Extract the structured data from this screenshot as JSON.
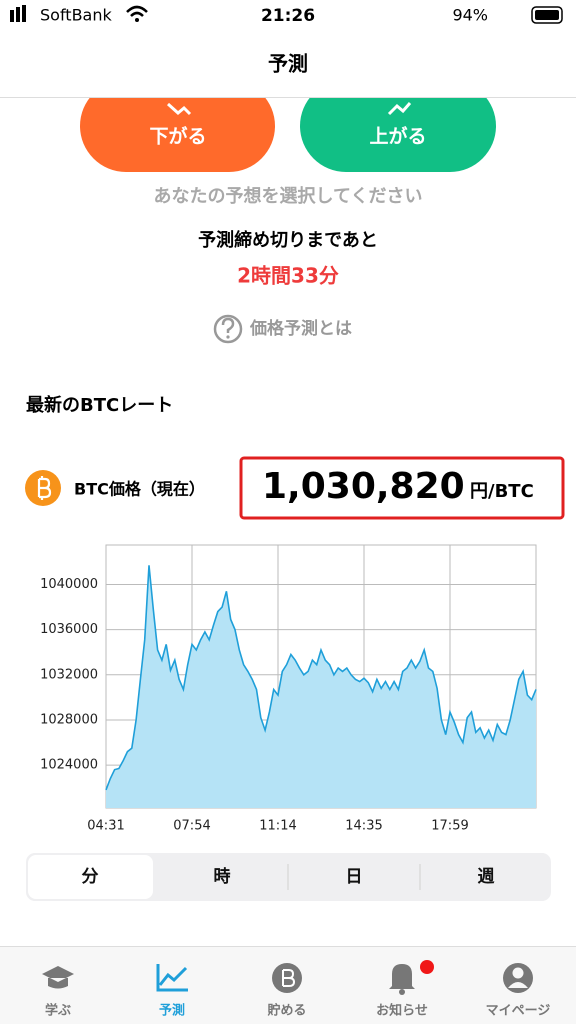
{
  "status_bar": {
    "carrier": "SoftBank",
    "time": "21:26",
    "battery": "94%"
  },
  "header": {
    "title": "予測"
  },
  "buttons": [
    {
      "label": "下がる"
    },
    {
      "label": "上がる"
    }
  ],
  "prompt": "あなたの予想を選択してください",
  "deadline": {
    "label": "予測締め切りまであと",
    "remaining": "2時間33分"
  },
  "help_link": "価格予測とは",
  "rate_section": {
    "title": "最新のBTCレート",
    "price_label": "BTC価格（現在）",
    "price": "1,030,820",
    "unit": "円/BTC"
  },
  "chart_data": {
    "type": "area",
    "categories": [
      "04:31",
      null,
      null,
      null,
      null,
      null,
      null,
      null,
      null,
      null,
      null,
      null,
      null,
      null,
      null,
      null,
      null,
      null,
      null,
      null,
      "07:54",
      null,
      null,
      null,
      null,
      null,
      null,
      null,
      null,
      null,
      null,
      null,
      null,
      null,
      null,
      null,
      null,
      null,
      null,
      null,
      "11:14",
      null,
      null,
      null,
      null,
      null,
      null,
      null,
      null,
      null,
      null,
      null,
      null,
      null,
      null,
      null,
      null,
      null,
      null,
      null,
      "14:35",
      null,
      null,
      null,
      null,
      null,
      null,
      null,
      null,
      null,
      null,
      null,
      null,
      null,
      null,
      null,
      null,
      null,
      null,
      null,
      "17:59",
      null,
      null,
      null,
      null,
      null,
      null,
      null,
      null,
      null,
      null,
      null,
      null,
      null,
      null,
      null,
      null,
      null,
      null,
      null,
      null
    ],
    "values": [
      1021800,
      1022800,
      1023600,
      1023700,
      1024400,
      1025200,
      1025500,
      1028000,
      1031600,
      1035100,
      1041700,
      1037800,
      1034200,
      1033300,
      1034700,
      1032400,
      1033300,
      1031600,
      1030700,
      1032900,
      1034700,
      1034200,
      1035100,
      1035800,
      1035100,
      1036400,
      1037600,
      1038000,
      1039400,
      1036900,
      1036000,
      1034200,
      1032900,
      1032300,
      1031600,
      1030700,
      1028200,
      1027100,
      1028700,
      1030700,
      1030200,
      1032300,
      1032900,
      1033800,
      1033300,
      1032600,
      1032000,
      1032300,
      1033300,
      1032900,
      1034200,
      1033300,
      1032900,
      1032000,
      1032600,
      1032300,
      1032600,
      1032000,
      1031600,
      1031400,
      1031700,
      1031300,
      1030500,
      1031600,
      1030800,
      1031400,
      1030700,
      1031400,
      1030700,
      1032300,
      1032600,
      1033300,
      1032600,
      1033200,
      1034200,
      1032600,
      1032300,
      1030800,
      1028000,
      1026700,
      1028700,
      1027800,
      1026700,
      1026000,
      1028200,
      1028700,
      1026900,
      1027300,
      1026400,
      1027100,
      1026200,
      1027600,
      1026900,
      1026700,
      1028000,
      1029800,
      1031600,
      1032300,
      1030200,
      1029800,
      1030700
    ],
    "color": "#1f9fd9",
    "fill_color": "#b5e3f6",
    "ylim": [
      1020200,
      1043500
    ],
    "yticks": [
      1024000,
      1028000,
      1032000,
      1036000,
      1040000
    ],
    "grid": true
  },
  "segments": [
    "分",
    "時",
    "日",
    "週"
  ],
  "tabs": [
    "学ぶ",
    "予測",
    "貯める",
    "お知らせ",
    "マイページ"
  ]
}
